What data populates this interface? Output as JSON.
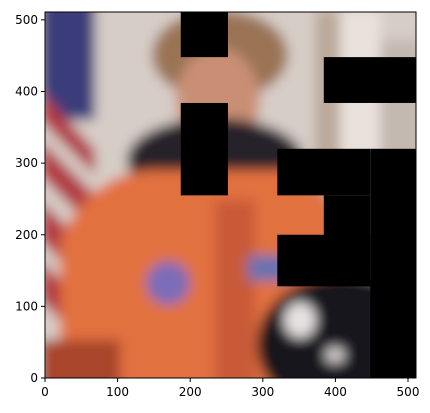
{
  "chart_data": {
    "type": "image",
    "image_subject": "blurred astronaut portrait in orange spacesuit with US flag background, partially masked by black rectangles",
    "x_range": [
      0,
      511
    ],
    "y_range": [
      0,
      511
    ],
    "y_origin": "bottom",
    "x_ticks": [
      0,
      100,
      200,
      300,
      400,
      500
    ],
    "y_ticks": [
      0,
      100,
      200,
      300,
      400,
      500
    ],
    "masks_data_units": [
      {
        "x": [
          187,
          252
        ],
        "y": [
          448,
          511
        ]
      },
      {
        "x": [
          187,
          252
        ],
        "y": [
          255,
          384
        ]
      },
      {
        "x": [
          320,
          448
        ],
        "y": [
          255,
          320
        ]
      },
      {
        "x": [
          448,
          511
        ],
        "y": [
          0,
          320
        ]
      },
      {
        "x": [
          384,
          511
        ],
        "y": [
          384,
          448
        ]
      },
      {
        "x": [
          320,
          448
        ],
        "y": [
          128,
          200
        ]
      },
      {
        "x": [
          384,
          448
        ],
        "y": [
          128,
          255
        ]
      }
    ],
    "mask_color": "#000000",
    "palette": {
      "background_light": "#cfc6c2",
      "flag_red": "#b23a45",
      "flag_blue": "#3a3c7a",
      "suit_orange": "#e2713f",
      "suit_shadow": "#a8442a",
      "hair_brown": "#9a7355",
      "skin": "#c98f74",
      "dark": "#1b1a1e",
      "patch_purple": "#7b6db8"
    }
  }
}
